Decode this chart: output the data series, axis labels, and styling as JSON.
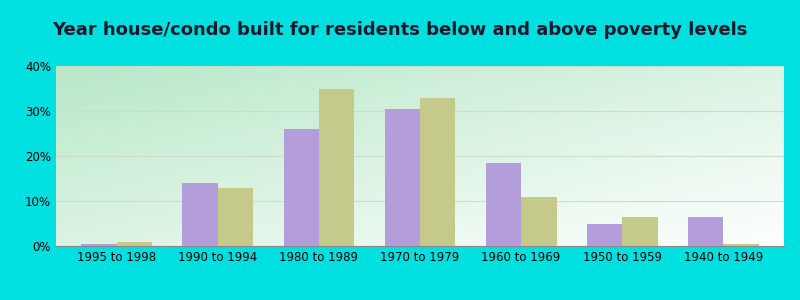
{
  "title": "Year house/condo built for residents below and above poverty levels",
  "categories": [
    "1995 to 1998",
    "1990 to 1994",
    "1980 to 1989",
    "1970 to 1979",
    "1960 to 1969",
    "1950 to 1959",
    "1940 to 1949"
  ],
  "below_poverty": [
    0.5,
    14.0,
    26.0,
    30.5,
    18.5,
    5.0,
    6.5
  ],
  "above_poverty": [
    1.0,
    13.0,
    35.0,
    33.0,
    11.0,
    6.5,
    0.5
  ],
  "below_color": "#b39ddb",
  "above_color": "#c5c98a",
  "ylim": [
    0,
    40
  ],
  "yticks": [
    0,
    10,
    20,
    30,
    40
  ],
  "ytick_labels": [
    "0%",
    "10%",
    "20%",
    "30%",
    "40%"
  ],
  "bar_width": 0.35,
  "title_fontsize": 13,
  "tick_fontsize": 8.5,
  "legend_fontsize": 9,
  "figure_bg": "#00e0e0",
  "grid_color": "#ccddcc",
  "gradient_colors": [
    "#b8e8c8",
    "#e8f4f0",
    "#f0f8f8",
    "#ffffff"
  ]
}
